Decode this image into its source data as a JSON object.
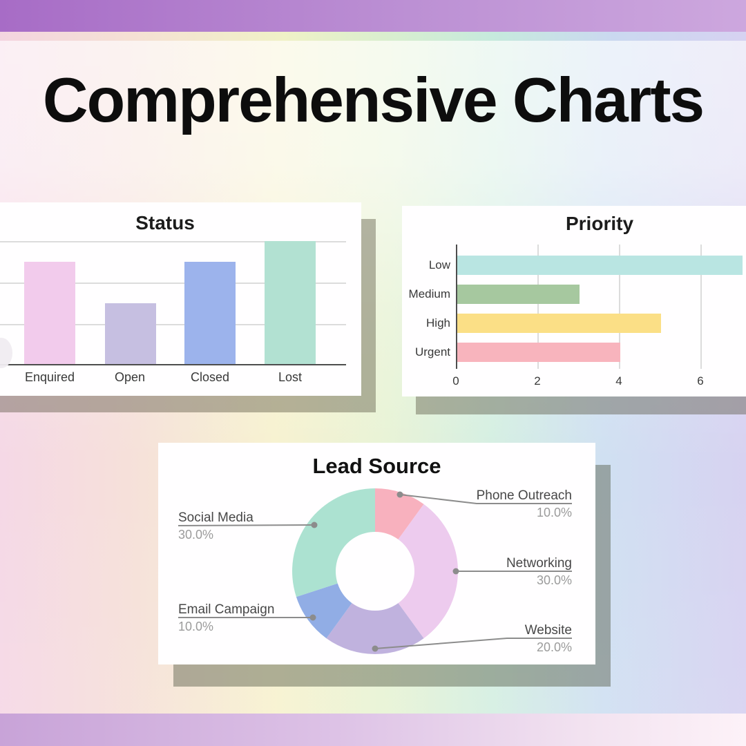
{
  "page": {
    "title": "Comprehensive Charts"
  },
  "chart_data": [
    {
      "type": "bar",
      "title": "Status",
      "categories": [
        "Enquired",
        "Open",
        "Closed",
        "Lost"
      ],
      "values": [
        5,
        3,
        5,
        6
      ],
      "colors": [
        "#f2cbec",
        "#c6bfe1",
        "#9cb3ec",
        "#b2e1d2"
      ],
      "ylim": [
        0,
        6
      ],
      "grid": "horizontal",
      "y_axis_labels_visible": false
    },
    {
      "type": "horizontal-bar",
      "title": "Priority",
      "categories": [
        "Low",
        "Medium",
        "High",
        "Urgent"
      ],
      "values": [
        7,
        3,
        5,
        4
      ],
      "colors": [
        "#b9e5e2",
        "#a6c89f",
        "#fbdf86",
        "#f8b4bd"
      ],
      "xticks": [
        0,
        2,
        4,
        6
      ],
      "xlim": [
        0,
        7
      ],
      "grid": "vertical"
    },
    {
      "type": "donut",
      "title": "Lead Source",
      "slices": [
        {
          "label": "Phone Outreach",
          "value": 10,
          "pct": "10.0%",
          "color": "#f8b1be"
        },
        {
          "label": "Networking",
          "value": 30,
          "pct": "30.0%",
          "color": "#edcbee"
        },
        {
          "label": "Website",
          "value": 20,
          "pct": "20.0%",
          "color": "#c0b2de"
        },
        {
          "label": "Email Campaign",
          "value": 10,
          "pct": "10.0%",
          "color": "#91ade5"
        },
        {
          "label": "Social Media",
          "value": 30,
          "pct": "30.0%",
          "color": "#ace2d1"
        }
      ],
      "leader_line_color": "#8c8c8c"
    }
  ]
}
